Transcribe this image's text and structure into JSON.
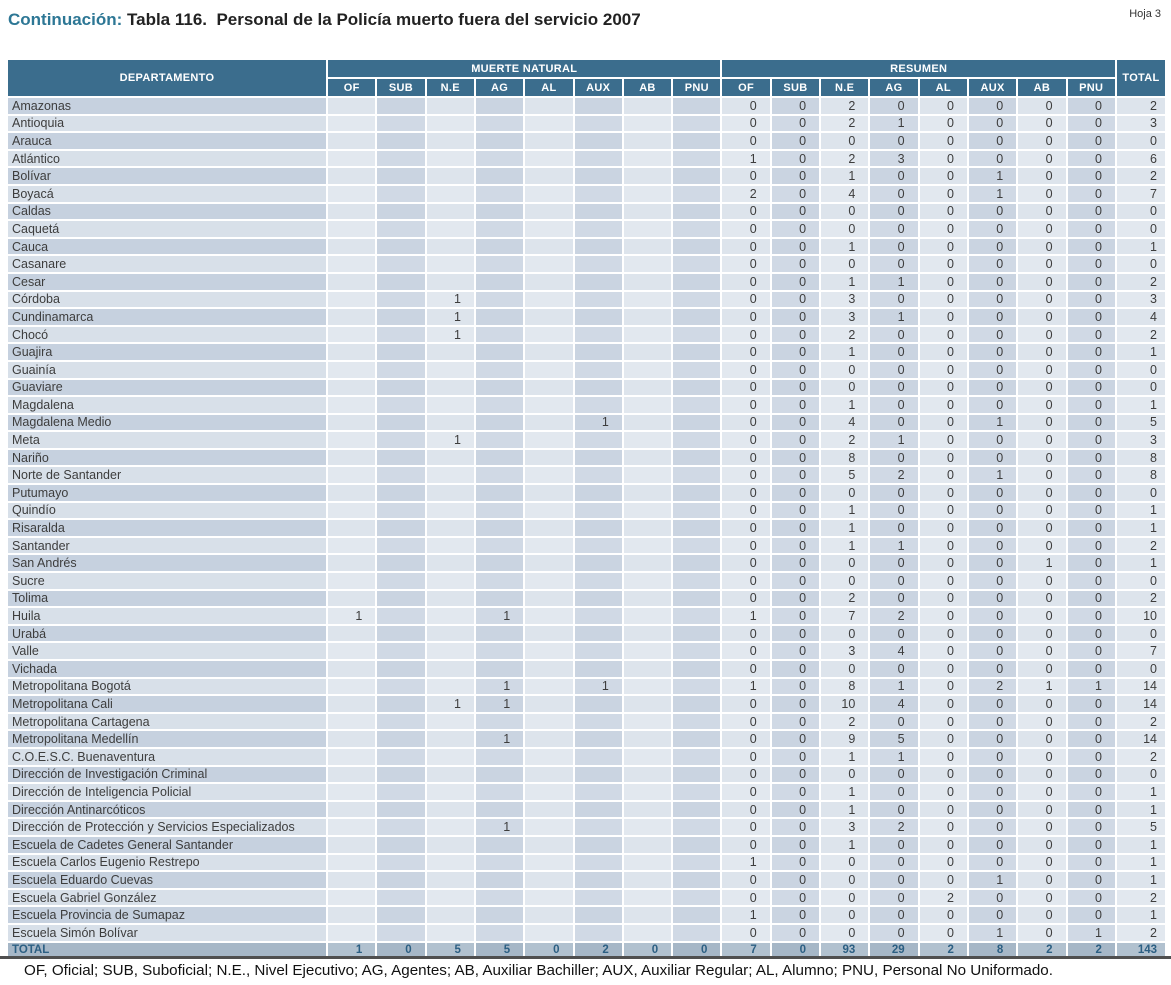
{
  "header": {
    "continuation_label": "Continuación:",
    "title": " Tabla 116.  Personal de la Policía muerto fuera del servicio 2007",
    "page_label": "Hoja 3"
  },
  "colors": {
    "accent": "#2d7795",
    "header_bg": "#3b6d8d",
    "total_row_bg_dark": "#a6b7c7",
    "total_row_bg_light": "#b1c1cf",
    "total_row_text": "#2c5f83"
  },
  "table": {
    "col_groups": [
      "DEPARTAMENTO",
      "MUERTE NATURAL",
      "RESUMEN",
      "TOTAL"
    ],
    "sub_columns": [
      "OF",
      "SUB",
      "N.E",
      "AG",
      "AL",
      "AUX",
      "AB",
      "PNU"
    ],
    "rows": [
      {
        "departamento": "Amazonas",
        "muerte_natural": [
          "",
          "",
          "",
          "",
          "",
          "",
          "",
          ""
        ],
        "resumen": [
          "0",
          "0",
          "2",
          "0",
          "0",
          "0",
          "0",
          "0"
        ],
        "total": "2"
      },
      {
        "departamento": "Antioquia",
        "muerte_natural": [
          "",
          "",
          "",
          "",
          "",
          "",
          "",
          ""
        ],
        "resumen": [
          "0",
          "0",
          "2",
          "1",
          "0",
          "0",
          "0",
          "0"
        ],
        "total": "3"
      },
      {
        "departamento": "Arauca",
        "muerte_natural": [
          "",
          "",
          "",
          "",
          "",
          "",
          "",
          ""
        ],
        "resumen": [
          "0",
          "0",
          "0",
          "0",
          "0",
          "0",
          "0",
          "0"
        ],
        "total": "0"
      },
      {
        "departamento": "Atlántico",
        "muerte_natural": [
          "",
          "",
          "",
          "",
          "",
          "",
          "",
          ""
        ],
        "resumen": [
          "1",
          "0",
          "2",
          "3",
          "0",
          "0",
          "0",
          "0"
        ],
        "total": "6"
      },
      {
        "departamento": "Bolívar",
        "muerte_natural": [
          "",
          "",
          "",
          "",
          "",
          "",
          "",
          ""
        ],
        "resumen": [
          "0",
          "0",
          "1",
          "0",
          "0",
          "1",
          "0",
          "0"
        ],
        "total": "2"
      },
      {
        "departamento": "Boyacá",
        "muerte_natural": [
          "",
          "",
          "",
          "",
          "",
          "",
          "",
          ""
        ],
        "resumen": [
          "2",
          "0",
          "4",
          "0",
          "0",
          "1",
          "0",
          "0"
        ],
        "total": "7"
      },
      {
        "departamento": "Caldas",
        "muerte_natural": [
          "",
          "",
          "",
          "",
          "",
          "",
          "",
          ""
        ],
        "resumen": [
          "0",
          "0",
          "0",
          "0",
          "0",
          "0",
          "0",
          "0"
        ],
        "total": "0"
      },
      {
        "departamento": "Caquetá",
        "muerte_natural": [
          "",
          "",
          "",
          "",
          "",
          "",
          "",
          ""
        ],
        "resumen": [
          "0",
          "0",
          "0",
          "0",
          "0",
          "0",
          "0",
          "0"
        ],
        "total": "0"
      },
      {
        "departamento": "Cauca",
        "muerte_natural": [
          "",
          "",
          "",
          "",
          "",
          "",
          "",
          ""
        ],
        "resumen": [
          "0",
          "0",
          "1",
          "0",
          "0",
          "0",
          "0",
          "0"
        ],
        "total": "1"
      },
      {
        "departamento": "Casanare",
        "muerte_natural": [
          "",
          "",
          "",
          "",
          "",
          "",
          "",
          ""
        ],
        "resumen": [
          "0",
          "0",
          "0",
          "0",
          "0",
          "0",
          "0",
          "0"
        ],
        "total": "0"
      },
      {
        "departamento": "Cesar",
        "muerte_natural": [
          "",
          "",
          "",
          "",
          "",
          "",
          "",
          ""
        ],
        "resumen": [
          "0",
          "0",
          "1",
          "1",
          "0",
          "0",
          "0",
          "0"
        ],
        "total": "2"
      },
      {
        "departamento": "Córdoba",
        "muerte_natural": [
          "",
          "",
          "1",
          "",
          "",
          "",
          "",
          ""
        ],
        "resumen": [
          "0",
          "0",
          "3",
          "0",
          "0",
          "0",
          "0",
          "0"
        ],
        "total": "3"
      },
      {
        "departamento": "Cundinamarca",
        "muerte_natural": [
          "",
          "",
          "1",
          "",
          "",
          "",
          "",
          ""
        ],
        "resumen": [
          "0",
          "0",
          "3",
          "1",
          "0",
          "0",
          "0",
          "0"
        ],
        "total": "4"
      },
      {
        "departamento": "Chocó",
        "muerte_natural": [
          "",
          "",
          "1",
          "",
          "",
          "",
          "",
          ""
        ],
        "resumen": [
          "0",
          "0",
          "2",
          "0",
          "0",
          "0",
          "0",
          "0"
        ],
        "total": "2"
      },
      {
        "departamento": "Guajira",
        "muerte_natural": [
          "",
          "",
          "",
          "",
          "",
          "",
          "",
          ""
        ],
        "resumen": [
          "0",
          "0",
          "1",
          "0",
          "0",
          "0",
          "0",
          "0"
        ],
        "total": "1"
      },
      {
        "departamento": "Guainía",
        "muerte_natural": [
          "",
          "",
          "",
          "",
          "",
          "",
          "",
          ""
        ],
        "resumen": [
          "0",
          "0",
          "0",
          "0",
          "0",
          "0",
          "0",
          "0"
        ],
        "total": "0"
      },
      {
        "departamento": "Guaviare",
        "muerte_natural": [
          "",
          "",
          "",
          "",
          "",
          "",
          "",
          ""
        ],
        "resumen": [
          "0",
          "0",
          "0",
          "0",
          "0",
          "0",
          "0",
          "0"
        ],
        "total": "0"
      },
      {
        "departamento": "Magdalena",
        "muerte_natural": [
          "",
          "",
          "",
          "",
          "",
          "",
          "",
          ""
        ],
        "resumen": [
          "0",
          "0",
          "1",
          "0",
          "0",
          "0",
          "0",
          "0"
        ],
        "total": "1"
      },
      {
        "departamento": "Magdalena Medio",
        "muerte_natural": [
          "",
          "",
          "",
          "",
          "",
          "1",
          "",
          ""
        ],
        "resumen": [
          "0",
          "0",
          "4",
          "0",
          "0",
          "1",
          "0",
          "0"
        ],
        "total": "5"
      },
      {
        "departamento": "Meta",
        "muerte_natural": [
          "",
          "",
          "1",
          "",
          "",
          "",
          "",
          ""
        ],
        "resumen": [
          "0",
          "0",
          "2",
          "1",
          "0",
          "0",
          "0",
          "0"
        ],
        "total": "3"
      },
      {
        "departamento": "Nariño",
        "muerte_natural": [
          "",
          "",
          "",
          "",
          "",
          "",
          "",
          ""
        ],
        "resumen": [
          "0",
          "0",
          "8",
          "0",
          "0",
          "0",
          "0",
          "0"
        ],
        "total": "8"
      },
      {
        "departamento": "Norte de Santander",
        "muerte_natural": [
          "",
          "",
          "",
          "",
          "",
          "",
          "",
          ""
        ],
        "resumen": [
          "0",
          "0",
          "5",
          "2",
          "0",
          "1",
          "0",
          "0"
        ],
        "total": "8"
      },
      {
        "departamento": "Putumayo",
        "muerte_natural": [
          "",
          "",
          "",
          "",
          "",
          "",
          "",
          ""
        ],
        "resumen": [
          "0",
          "0",
          "0",
          "0",
          "0",
          "0",
          "0",
          "0"
        ],
        "total": "0"
      },
      {
        "departamento": "Quindío",
        "muerte_natural": [
          "",
          "",
          "",
          "",
          "",
          "",
          "",
          ""
        ],
        "resumen": [
          "0",
          "0",
          "1",
          "0",
          "0",
          "0",
          "0",
          "0"
        ],
        "total": "1"
      },
      {
        "departamento": "Risaralda",
        "muerte_natural": [
          "",
          "",
          "",
          "",
          "",
          "",
          "",
          ""
        ],
        "resumen": [
          "0",
          "0",
          "1",
          "0",
          "0",
          "0",
          "0",
          "0"
        ],
        "total": "1"
      },
      {
        "departamento": "Santander",
        "muerte_natural": [
          "",
          "",
          "",
          "",
          "",
          "",
          "",
          ""
        ],
        "resumen": [
          "0",
          "0",
          "1",
          "1",
          "0",
          "0",
          "0",
          "0"
        ],
        "total": "2"
      },
      {
        "departamento": "San Andrés",
        "muerte_natural": [
          "",
          "",
          "",
          "",
          "",
          "",
          "",
          ""
        ],
        "resumen": [
          "0",
          "0",
          "0",
          "0",
          "0",
          "0",
          "1",
          "0"
        ],
        "total": "1"
      },
      {
        "departamento": "Sucre",
        "muerte_natural": [
          "",
          "",
          "",
          "",
          "",
          "",
          "",
          ""
        ],
        "resumen": [
          "0",
          "0",
          "0",
          "0",
          "0",
          "0",
          "0",
          "0"
        ],
        "total": "0"
      },
      {
        "departamento": "Tolima",
        "muerte_natural": [
          "",
          "",
          "",
          "",
          "",
          "",
          "",
          ""
        ],
        "resumen": [
          "0",
          "0",
          "2",
          "0",
          "0",
          "0",
          "0",
          "0"
        ],
        "total": "2"
      },
      {
        "departamento": "Huila",
        "muerte_natural": [
          "1",
          "",
          "",
          "1",
          "",
          "",
          "",
          ""
        ],
        "resumen": [
          "1",
          "0",
          "7",
          "2",
          "0",
          "0",
          "0",
          "0"
        ],
        "total": "10"
      },
      {
        "departamento": "Urabá",
        "muerte_natural": [
          "",
          "",
          "",
          "",
          "",
          "",
          "",
          ""
        ],
        "resumen": [
          "0",
          "0",
          "0",
          "0",
          "0",
          "0",
          "0",
          "0"
        ],
        "total": "0"
      },
      {
        "departamento": "Valle",
        "muerte_natural": [
          "",
          "",
          "",
          "",
          "",
          "",
          "",
          ""
        ],
        "resumen": [
          "0",
          "0",
          "3",
          "4",
          "0",
          "0",
          "0",
          "0"
        ],
        "total": "7"
      },
      {
        "departamento": "Vichada",
        "muerte_natural": [
          "",
          "",
          "",
          "",
          "",
          "",
          "",
          ""
        ],
        "resumen": [
          "0",
          "0",
          "0",
          "0",
          "0",
          "0",
          "0",
          "0"
        ],
        "total": "0"
      },
      {
        "departamento": "Metropolitana Bogotá",
        "muerte_natural": [
          "",
          "",
          "",
          "1",
          "",
          "1",
          "",
          ""
        ],
        "resumen": [
          "1",
          "0",
          "8",
          "1",
          "0",
          "2",
          "1",
          "1"
        ],
        "total": "14"
      },
      {
        "departamento": "Metropolitana Cali",
        "muerte_natural": [
          "",
          "",
          "1",
          "1",
          "",
          "",
          "",
          ""
        ],
        "resumen": [
          "0",
          "0",
          "10",
          "4",
          "0",
          "0",
          "0",
          "0"
        ],
        "total": "14"
      },
      {
        "departamento": "Metropolitana Cartagena",
        "muerte_natural": [
          "",
          "",
          "",
          "",
          "",
          "",
          "",
          ""
        ],
        "resumen": [
          "0",
          "0",
          "2",
          "0",
          "0",
          "0",
          "0",
          "0"
        ],
        "total": "2"
      },
      {
        "departamento": "Metropolitana Medellín",
        "muerte_natural": [
          "",
          "",
          "",
          "1",
          "",
          "",
          "",
          ""
        ],
        "resumen": [
          "0",
          "0",
          "9",
          "5",
          "0",
          "0",
          "0",
          "0"
        ],
        "total": "14"
      },
      {
        "departamento": "C.O.E.S.C. Buenaventura",
        "muerte_natural": [
          "",
          "",
          "",
          "",
          "",
          "",
          "",
          ""
        ],
        "resumen": [
          "0",
          "0",
          "1",
          "1",
          "0",
          "0",
          "0",
          "0"
        ],
        "total": "2"
      },
      {
        "departamento": "Dirección de Investigación Criminal",
        "muerte_natural": [
          "",
          "",
          "",
          "",
          "",
          "",
          "",
          ""
        ],
        "resumen": [
          "0",
          "0",
          "0",
          "0",
          "0",
          "0",
          "0",
          "0"
        ],
        "total": "0"
      },
      {
        "departamento": "Dirección de Inteligencia Policial",
        "muerte_natural": [
          "",
          "",
          "",
          "",
          "",
          "",
          "",
          ""
        ],
        "resumen": [
          "0",
          "0",
          "1",
          "0",
          "0",
          "0",
          "0",
          "0"
        ],
        "total": "1"
      },
      {
        "departamento": "Dirección Antinarcóticos",
        "muerte_natural": [
          "",
          "",
          "",
          "",
          "",
          "",
          "",
          ""
        ],
        "resumen": [
          "0",
          "0",
          "1",
          "0",
          "0",
          "0",
          "0",
          "0"
        ],
        "total": "1"
      },
      {
        "departamento": "Dirección de Protección y Servicios Especializados",
        "muerte_natural": [
          "",
          "",
          "",
          "1",
          "",
          "",
          "",
          ""
        ],
        "resumen": [
          "0",
          "0",
          "3",
          "2",
          "0",
          "0",
          "0",
          "0"
        ],
        "total": "5"
      },
      {
        "departamento": "Escuela de Cadetes General Santander",
        "muerte_natural": [
          "",
          "",
          "",
          "",
          "",
          "",
          "",
          ""
        ],
        "resumen": [
          "0",
          "0",
          "1",
          "0",
          "0",
          "0",
          "0",
          "0"
        ],
        "total": "1"
      },
      {
        "departamento": "Escuela Carlos Eugenio Restrepo",
        "muerte_natural": [
          "",
          "",
          "",
          "",
          "",
          "",
          "",
          ""
        ],
        "resumen": [
          "1",
          "0",
          "0",
          "0",
          "0",
          "0",
          "0",
          "0"
        ],
        "total": "1"
      },
      {
        "departamento": "Escuela Eduardo Cuevas",
        "muerte_natural": [
          "",
          "",
          "",
          "",
          "",
          "",
          "",
          ""
        ],
        "resumen": [
          "0",
          "0",
          "0",
          "0",
          "0",
          "1",
          "0",
          "0"
        ],
        "total": "1"
      },
      {
        "departamento": "Escuela Gabriel González",
        "muerte_natural": [
          "",
          "",
          "",
          "",
          "",
          "",
          "",
          ""
        ],
        "resumen": [
          "0",
          "0",
          "0",
          "0",
          "2",
          "0",
          "0",
          "0"
        ],
        "total": "2"
      },
      {
        "departamento": "Escuela Provincia de Sumapaz",
        "muerte_natural": [
          "",
          "",
          "",
          "",
          "",
          "",
          "",
          ""
        ],
        "resumen": [
          "1",
          "0",
          "0",
          "0",
          "0",
          "0",
          "0",
          "0"
        ],
        "total": "1"
      },
      {
        "departamento": "Escuela Simón Bolívar",
        "muerte_natural": [
          "",
          "",
          "",
          "",
          "",
          "",
          "",
          ""
        ],
        "resumen": [
          "0",
          "0",
          "0",
          "0",
          "0",
          "1",
          "0",
          "1"
        ],
        "total": "2"
      }
    ],
    "total_row": {
      "label": "TOTAL",
      "muerte_natural": [
        "1",
        "0",
        "5",
        "5",
        "0",
        "2",
        "0",
        "0"
      ],
      "resumen": [
        "7",
        "0",
        "93",
        "29",
        "2",
        "8",
        "2",
        "2"
      ],
      "total": "143"
    }
  },
  "footer": {
    "legend": "OF, Oficial; SUB, Suboficial; N.E., Nivel Ejecutivo; AG, Agentes; AB, Auxiliar Bachiller; AUX, Auxiliar Regular; AL, Alumno; PNU, Personal No Uniformado."
  }
}
